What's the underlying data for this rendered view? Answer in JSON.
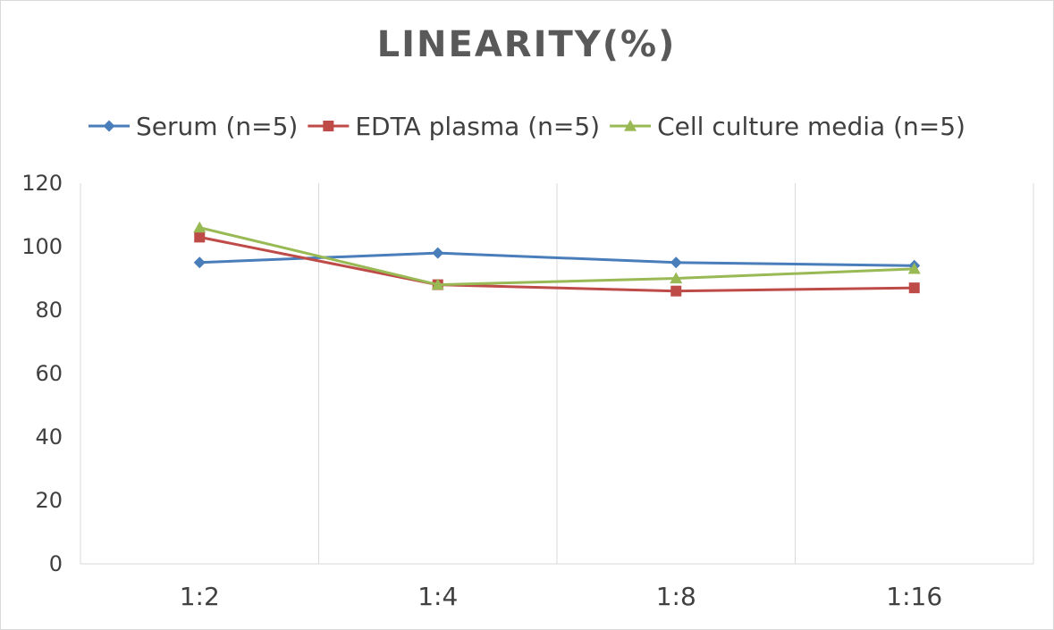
{
  "chart_data": {
    "type": "line",
    "title": "LINEARITY(%)",
    "xlabel": "",
    "ylabel": "",
    "categories": [
      "1:2",
      "1:4",
      "1:8",
      "1:16"
    ],
    "ylim": [
      0,
      120
    ],
    "yticks": [
      0,
      20,
      40,
      60,
      80,
      100,
      120
    ],
    "grid": "vertical",
    "legend_position": "top",
    "series": [
      {
        "name": "Serum (n=5)",
        "values": [
          95,
          98,
          95,
          94
        ],
        "color": "#4a7ebb",
        "marker": "diamond"
      },
      {
        "name": "EDTA plasma (n=5)",
        "values": [
          103,
          88,
          86,
          87
        ],
        "color": "#be4b48",
        "marker": "square"
      },
      {
        "name": "Cell culture media (n=5)",
        "values": [
          106,
          88,
          90,
          93
        ],
        "color": "#98b954",
        "marker": "triangle"
      }
    ]
  }
}
